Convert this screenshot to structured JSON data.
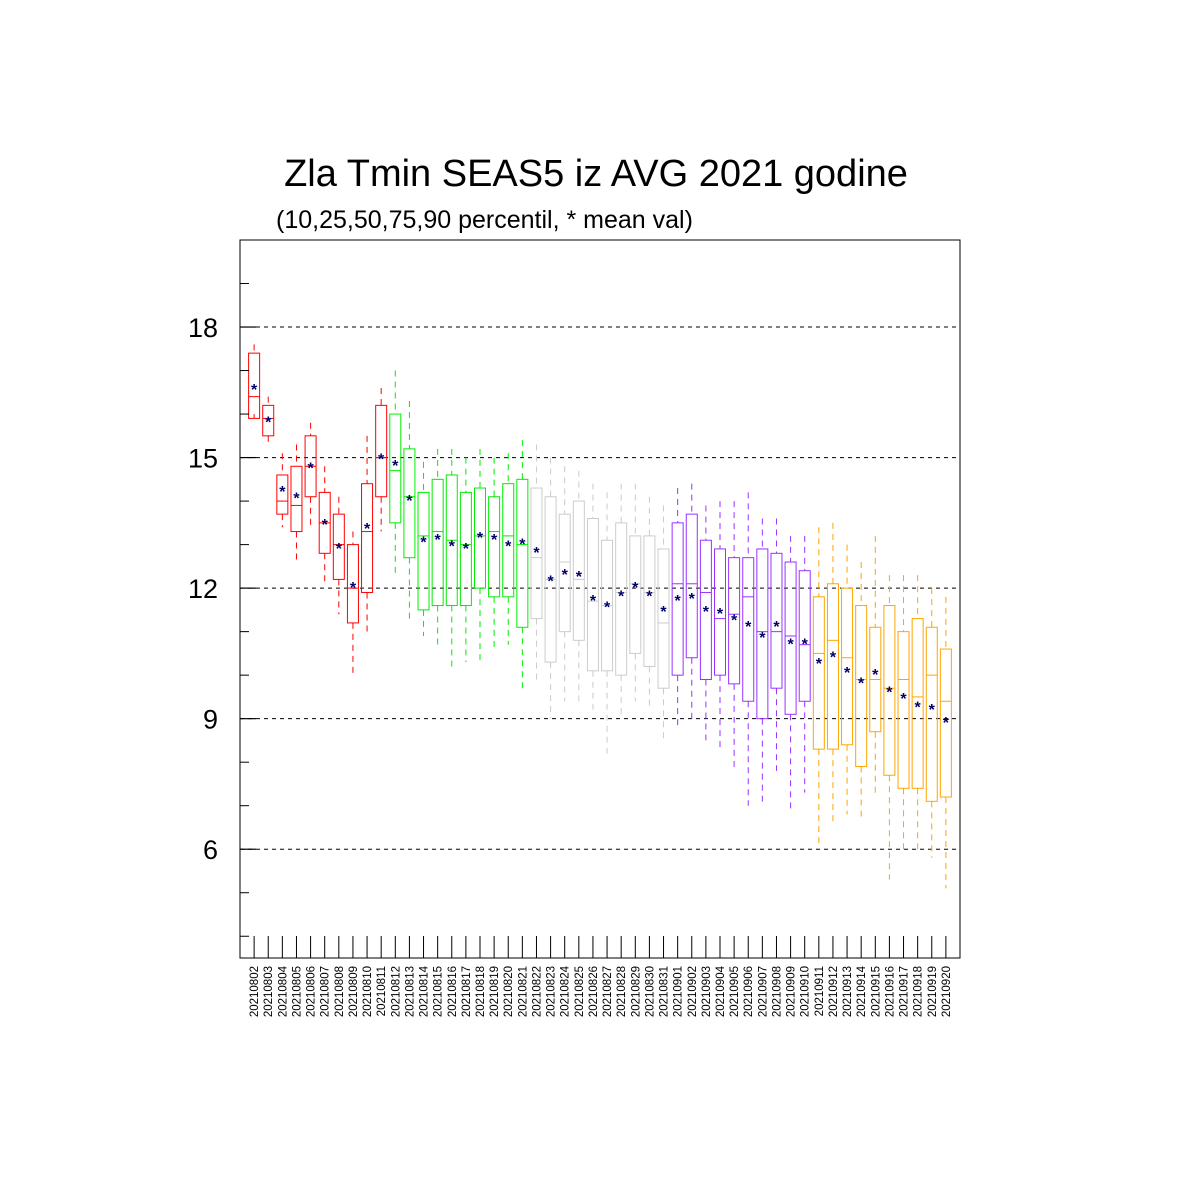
{
  "chart_data": {
    "type": "box",
    "title": "Zla Tmin SEAS5 iz AVG 2021 godine",
    "subtitle": "(10,25,50,75,90 percentil, * mean val)",
    "ylim": [
      3.5,
      20
    ],
    "yticks": [
      6,
      9,
      12,
      15,
      18
    ],
    "grid": "horizontal dashed at major ticks",
    "group_colors": {
      "august_early": "#ff0000",
      "august_mid": "#00ee00",
      "august_late": "#cccccc",
      "september_early": "#9933ff",
      "september_late": "#ffa500"
    },
    "mean_marker_color": "#00006e",
    "boxes": [
      {
        "label": "20210802",
        "group": "august_early",
        "p10": 16.0,
        "p25": 15.9,
        "p50": 16.4,
        "p75": 17.4,
        "p90": 17.6,
        "mean": 16.6
      },
      {
        "label": "20210803",
        "group": "august_early",
        "p10": 15.3,
        "p25": 15.5,
        "p50": 15.9,
        "p75": 16.2,
        "p90": 16.4,
        "mean": 15.85
      },
      {
        "label": "20210804",
        "group": "august_early",
        "p10": 13.4,
        "p25": 13.7,
        "p50": 14.0,
        "p75": 14.6,
        "p90": 15.1,
        "mean": 14.25
      },
      {
        "label": "20210805",
        "group": "august_early",
        "p10": 12.6,
        "p25": 13.3,
        "p50": 13.9,
        "p75": 14.8,
        "p90": 15.3,
        "mean": 14.1
      },
      {
        "label": "20210806",
        "group": "august_early",
        "p10": 13.4,
        "p25": 14.1,
        "p50": 14.8,
        "p75": 15.5,
        "p90": 15.8,
        "mean": 14.8
      },
      {
        "label": "20210807",
        "group": "august_early",
        "p10": 12.1,
        "p25": 12.8,
        "p50": 13.5,
        "p75": 14.2,
        "p90": 14.8,
        "mean": 13.5
      },
      {
        "label": "20210808",
        "group": "august_early",
        "p10": 11.4,
        "p25": 12.2,
        "p50": 13.0,
        "p75": 13.7,
        "p90": 14.1,
        "mean": 12.95
      },
      {
        "label": "20210809",
        "group": "august_early",
        "p10": 10.0,
        "p25": 11.2,
        "p50": 12.0,
        "p75": 13.0,
        "p90": 13.3,
        "mean": 12.05
      },
      {
        "label": "20210810",
        "group": "august_early",
        "p10": 11.0,
        "p25": 11.9,
        "p50": 13.3,
        "p75": 14.4,
        "p90": 15.5,
        "mean": 13.4
      },
      {
        "label": "20210811",
        "group": "august_early",
        "p10": 13.3,
        "p25": 14.1,
        "p50": 15.0,
        "p75": 16.2,
        "p90": 16.6,
        "mean": 15.0
      },
      {
        "label": "20210812",
        "group": "august_mid",
        "p10": 12.3,
        "p25": 13.5,
        "p50": 14.7,
        "p75": 16.0,
        "p90": 17.0,
        "mean": 14.85
      },
      {
        "label": "20210813",
        "group": "august_mid",
        "p10": 11.3,
        "p25": 12.7,
        "p50": 14.1,
        "p75": 15.2,
        "p90": 16.3,
        "mean": 14.05
      },
      {
        "label": "20210814",
        "group": "august_mid",
        "p10": 10.9,
        "p25": 11.5,
        "p50": 13.2,
        "p75": 14.2,
        "p90": 14.9,
        "mean": 13.1
      },
      {
        "label": "20210815",
        "group": "august_mid",
        "p10": 10.6,
        "p25": 11.6,
        "p50": 13.3,
        "p75": 14.5,
        "p90": 15.2,
        "mean": 13.15
      },
      {
        "label": "20210816",
        "group": "august_mid",
        "p10": 10.1,
        "p25": 11.6,
        "p50": 13.1,
        "p75": 14.6,
        "p90": 15.2,
        "mean": 13.0
      },
      {
        "label": "20210817",
        "group": "august_mid",
        "p10": 10.3,
        "p25": 11.6,
        "p50": 13.0,
        "p75": 14.2,
        "p90": 15.0,
        "mean": 12.95
      },
      {
        "label": "20210818",
        "group": "august_mid",
        "p10": 10.3,
        "p25": 12.0,
        "p50": 13.2,
        "p75": 14.3,
        "p90": 15.2,
        "mean": 13.2
      },
      {
        "label": "20210819",
        "group": "august_mid",
        "p10": 10.6,
        "p25": 11.8,
        "p50": 13.3,
        "p75": 14.1,
        "p90": 15.0,
        "mean": 13.15
      },
      {
        "label": "20210820",
        "group": "august_mid",
        "p10": 10.7,
        "p25": 11.8,
        "p50": 13.2,
        "p75": 14.4,
        "p90": 15.1,
        "mean": 13.0
      },
      {
        "label": "20210821",
        "group": "august_mid",
        "p10": 9.7,
        "p25": 11.1,
        "p50": 13.0,
        "p75": 14.5,
        "p90": 15.4,
        "mean": 13.05
      },
      {
        "label": "20210822",
        "group": "august_late",
        "p10": 9.8,
        "p25": 11.3,
        "p50": 12.7,
        "p75": 14.3,
        "p90": 15.3,
        "mean": 12.85
      },
      {
        "label": "20210823",
        "group": "august_late",
        "p10": 9.0,
        "p25": 10.3,
        "p50": 12.2,
        "p75": 14.1,
        "p90": 15.0,
        "mean": 12.2
      },
      {
        "label": "20210824",
        "group": "august_late",
        "p10": 9.4,
        "p25": 11.0,
        "p50": 12.6,
        "p75": 13.7,
        "p90": 14.8,
        "mean": 12.35
      },
      {
        "label": "20210825",
        "group": "august_late",
        "p10": 9.4,
        "p25": 10.8,
        "p50": 12.2,
        "p75": 14.0,
        "p90": 14.7,
        "mean": 12.3
      },
      {
        "label": "20210826",
        "group": "august_late",
        "p10": 9.2,
        "p25": 10.1,
        "p50": 11.7,
        "p75": 13.6,
        "p90": 14.4,
        "mean": 11.75
      },
      {
        "label": "20210827",
        "group": "august_late",
        "p10": 8.1,
        "p25": 10.1,
        "p50": 11.6,
        "p75": 13.1,
        "p90": 14.2,
        "mean": 11.6
      },
      {
        "label": "20210828",
        "group": "august_late",
        "p10": 9.0,
        "p25": 10.0,
        "p50": 11.9,
        "p75": 13.5,
        "p90": 14.4,
        "mean": 11.85
      },
      {
        "label": "20210829",
        "group": "august_late",
        "p10": 9.4,
        "p25": 10.5,
        "p50": 12.1,
        "p75": 13.2,
        "p90": 14.4,
        "mean": 12.05
      },
      {
        "label": "20210830",
        "group": "august_late",
        "p10": 9.2,
        "p25": 10.2,
        "p50": 11.9,
        "p75": 13.2,
        "p90": 14.1,
        "mean": 11.85
      },
      {
        "label": "20210831",
        "group": "august_late",
        "p10": 8.5,
        "p25": 9.7,
        "p50": 11.2,
        "p75": 12.9,
        "p90": 13.9,
        "mean": 11.5
      },
      {
        "label": "20210901",
        "group": "september_early",
        "p10": 8.8,
        "p25": 10.0,
        "p50": 12.1,
        "p75": 13.5,
        "p90": 14.3,
        "mean": 11.75
      },
      {
        "label": "20210902",
        "group": "september_early",
        "p10": 8.9,
        "p25": 10.4,
        "p50": 12.1,
        "p75": 13.7,
        "p90": 14.4,
        "mean": 11.8
      },
      {
        "label": "20210903",
        "group": "september_early",
        "p10": 8.5,
        "p25": 9.9,
        "p50": 11.9,
        "p75": 13.1,
        "p90": 13.9,
        "mean": 11.5
      },
      {
        "label": "20210904",
        "group": "september_early",
        "p10": 8.3,
        "p25": 10.0,
        "p50": 11.3,
        "p75": 12.9,
        "p90": 14.0,
        "mean": 11.45
      },
      {
        "label": "20210905",
        "group": "september_early",
        "p10": 7.8,
        "p25": 9.8,
        "p50": 11.4,
        "p75": 12.7,
        "p90": 14.0,
        "mean": 11.3
      },
      {
        "label": "20210906",
        "group": "september_early",
        "p10": 7.0,
        "p25": 9.4,
        "p50": 11.8,
        "p75": 12.7,
        "p90": 14.2,
        "mean": 11.15
      },
      {
        "label": "20210907",
        "group": "september_early",
        "p10": 7.0,
        "p25": 9.0,
        "p50": 11.0,
        "p75": 12.9,
        "p90": 13.6,
        "mean": 10.9
      },
      {
        "label": "20210908",
        "group": "september_early",
        "p10": 7.8,
        "p25": 9.7,
        "p50": 11.0,
        "p75": 12.8,
        "p90": 13.6,
        "mean": 11.15
      },
      {
        "label": "20210909",
        "group": "september_early",
        "p10": 6.9,
        "p25": 9.1,
        "p50": 10.9,
        "p75": 12.6,
        "p90": 13.2,
        "mean": 10.75
      },
      {
        "label": "20210910",
        "group": "september_early",
        "p10": 7.3,
        "p25": 9.4,
        "p50": 10.7,
        "p75": 12.4,
        "p90": 13.2,
        "mean": 10.75
      },
      {
        "label": "20210911",
        "group": "september_late",
        "p10": 6.1,
        "p25": 8.3,
        "p50": 10.5,
        "p75": 11.8,
        "p90": 13.4,
        "mean": 10.3
      },
      {
        "label": "20210912",
        "group": "september_late",
        "p10": 6.6,
        "p25": 8.3,
        "p50": 10.8,
        "p75": 12.1,
        "p90": 13.5,
        "mean": 10.45
      },
      {
        "label": "20210913",
        "group": "september_late",
        "p10": 6.8,
        "p25": 8.4,
        "p50": 10.4,
        "p75": 12.0,
        "p90": 13.0,
        "mean": 10.1
      },
      {
        "label": "20210914",
        "group": "september_late",
        "p10": 6.7,
        "p25": 7.9,
        "p50": 9.9,
        "p75": 11.6,
        "p90": 12.6,
        "mean": 9.85
      },
      {
        "label": "20210915",
        "group": "september_late",
        "p10": 7.2,
        "p25": 8.7,
        "p50": 9.9,
        "p75": 11.1,
        "p90": 13.2,
        "mean": 10.05
      },
      {
        "label": "20210916",
        "group": "september_late",
        "p10": 5.3,
        "p25": 7.7,
        "p50": 9.7,
        "p75": 11.6,
        "p90": 12.3,
        "mean": 9.65
      },
      {
        "label": "20210917",
        "group": "september_late",
        "p10": 5.9,
        "p25": 7.4,
        "p50": 9.9,
        "p75": 11.0,
        "p90": 12.3,
        "mean": 9.5
      },
      {
        "label": "20210918",
        "group": "september_late",
        "p10": 6.0,
        "p25": 7.4,
        "p50": 9.5,
        "p75": 11.3,
        "p90": 12.3,
        "mean": 9.3
      },
      {
        "label": "20210919",
        "group": "september_late",
        "p10": 5.8,
        "p25": 7.1,
        "p50": 10.0,
        "p75": 11.1,
        "p90": 12.0,
        "mean": 9.25
      },
      {
        "label": "20210920",
        "group": "september_late",
        "p10": 5.1,
        "p25": 7.2,
        "p50": 9.4,
        "p75": 10.6,
        "p90": 11.8,
        "mean": 8.95
      }
    ]
  }
}
